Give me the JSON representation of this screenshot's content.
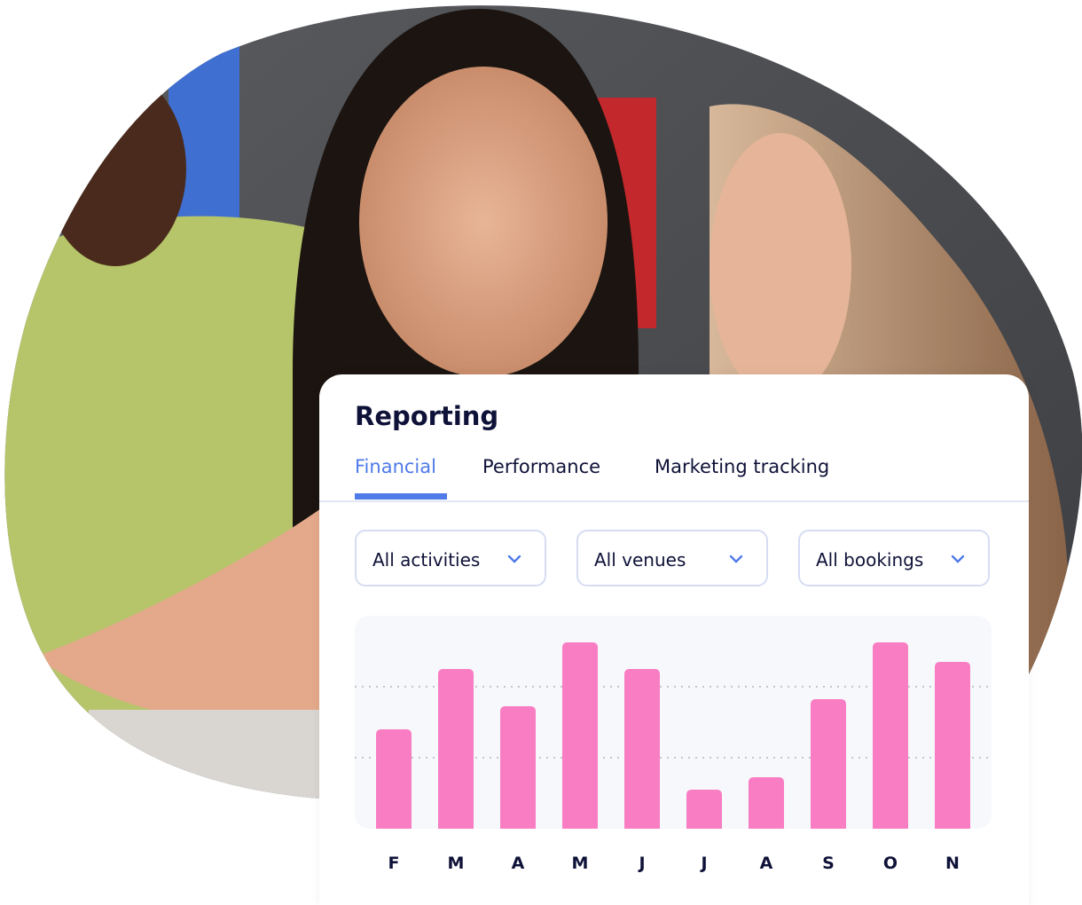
{
  "card": {
    "title": "Reporting",
    "tabs": [
      {
        "label": "Financial",
        "active": true
      },
      {
        "label": "Performance",
        "active": false
      },
      {
        "label": "Marketing tracking",
        "active": false
      }
    ],
    "filters": [
      {
        "value": "All activities",
        "icon": "chevron-down-icon"
      },
      {
        "value": "All venues",
        "icon": "chevron-down-icon"
      },
      {
        "value": "All bookings",
        "icon": "chevron-down-icon"
      }
    ]
  },
  "colors": {
    "accent": "#4f7ae8",
    "bar": "#f97dc2",
    "text": "#0f1238",
    "chart_bg": "#f7f8fc"
  },
  "chart_data": {
    "type": "bar",
    "categories": [
      "F",
      "M",
      "A",
      "M",
      "J",
      "J",
      "A",
      "S",
      "O",
      "N"
    ],
    "values": [
      2.8,
      4.5,
      3.45,
      5.25,
      4.5,
      1.1,
      1.45,
      3.65,
      5.25,
      4.7
    ],
    "ylim": [
      0,
      6
    ],
    "gridlines": [
      2,
      4
    ],
    "grid": "dotted horizontal",
    "title": "",
    "xlabel": "",
    "ylabel": ""
  }
}
